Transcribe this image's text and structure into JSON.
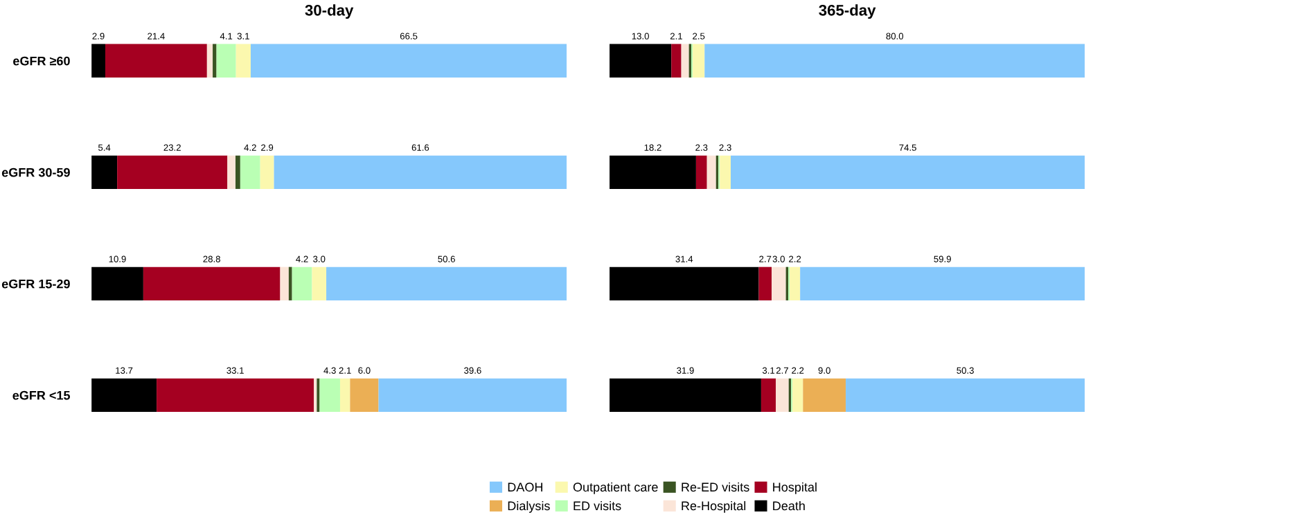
{
  "chart_data": [
    {
      "type": "bar",
      "title": "30-day",
      "orientation": "horizontal",
      "stacked": true,
      "tick_labels": "y",
      "legend": "bottom",
      "grid": false,
      "categories": [
        "eGFR ≥60",
        "eGFR 30-59",
        "eGFR 15-29",
        "eGFR <15"
      ],
      "series": [
        {
          "name": "Death",
          "color": "#000000",
          "values": [
            2.9,
            5.4,
            10.9,
            13.7
          ],
          "value_labels": [
            "2.9",
            "5.4",
            "10.9",
            "13.7"
          ]
        },
        {
          "name": "Hospital",
          "color": "#a50021",
          "values": [
            21.4,
            23.2,
            28.8,
            33.1
          ],
          "value_labels": [
            "21.4",
            "23.2",
            "28.8",
            "33.1"
          ]
        },
        {
          "name": "Re-Hospital",
          "color": "#fbe5d8",
          "values": [
            1.2,
            1.7,
            1.8,
            0.6
          ],
          "value_labels": [
            null,
            null,
            null,
            null
          ]
        },
        {
          "name": "Re-ED visits",
          "color": "#3a5423",
          "values": [
            0.8,
            1.0,
            0.7,
            0.6
          ],
          "value_labels": [
            null,
            null,
            null,
            null
          ]
        },
        {
          "name": "ED visits",
          "color": "#baffb4",
          "values": [
            4.1,
            4.2,
            4.2,
            4.3
          ],
          "value_labels": [
            "4.1",
            "4.2",
            "4.2",
            "4.3"
          ]
        },
        {
          "name": "Outpatient care",
          "color": "#fbf8ae",
          "values": [
            3.1,
            2.9,
            3.0,
            2.1
          ],
          "value_labels": [
            "3.1",
            "2.9",
            "3.0",
            "2.1"
          ]
        },
        {
          "name": "Dialysis",
          "color": "#ebaf55",
          "values": [
            null,
            null,
            null,
            6.0
          ],
          "value_labels": [
            null,
            null,
            null,
            "6.0"
          ]
        },
        {
          "name": "DAOH",
          "color": "#85c8fc",
          "values": [
            66.5,
            61.6,
            50.6,
            39.6
          ],
          "value_labels": [
            "66.5",
            "61.6",
            "50.6",
            "39.6"
          ]
        }
      ]
    },
    {
      "type": "bar",
      "title": "365-day",
      "orientation": "horizontal",
      "stacked": true,
      "tick_labels": false,
      "grid": false,
      "series": [
        {
          "color": "#000000",
          "values": [
            13.0,
            18.2,
            31.4,
            31.9
          ],
          "value_labels": [
            "13.0",
            "18.2",
            "31.4",
            "31.9"
          ]
        },
        {
          "color": "#a50021",
          "values": [
            2.1,
            2.3,
            2.7,
            3.1
          ],
          "value_labels": [
            "2.1",
            "2.3",
            "2.7",
            "3.1"
          ]
        },
        {
          "color": "#fbe5d8",
          "values": [
            1.6,
            1.9,
            3.0,
            2.7
          ],
          "value_labels": [
            null,
            null,
            "3.0",
            "2.7"
          ]
        },
        {
          "color": "#3a5423",
          "values": [
            0.5,
            0.5,
            0.5,
            0.5
          ],
          "value_labels": [
            null,
            null,
            null,
            null
          ]
        },
        {
          "color": "#baffb4",
          "values": [
            0.3,
            0.3,
            0.3,
            0.3
          ],
          "value_labels": [
            null,
            null,
            null,
            null
          ]
        },
        {
          "color": "#fbf8ae",
          "values": [
            2.5,
            2.3,
            2.2,
            2.2
          ],
          "value_labels": [
            "2.5",
            "2.3",
            "2.2",
            "2.2"
          ]
        },
        {
          "color": "#ebaf55",
          "values": [
            null,
            null,
            null,
            9.0
          ],
          "value_labels": [
            null,
            null,
            null,
            "9.0"
          ]
        },
        {
          "color": "#85c8fc",
          "values": [
            80.0,
            74.5,
            59.9,
            50.3
          ],
          "value_labels": [
            "80.0",
            "74.5",
            "59.9",
            "50.3"
          ]
        }
      ]
    }
  ]
}
